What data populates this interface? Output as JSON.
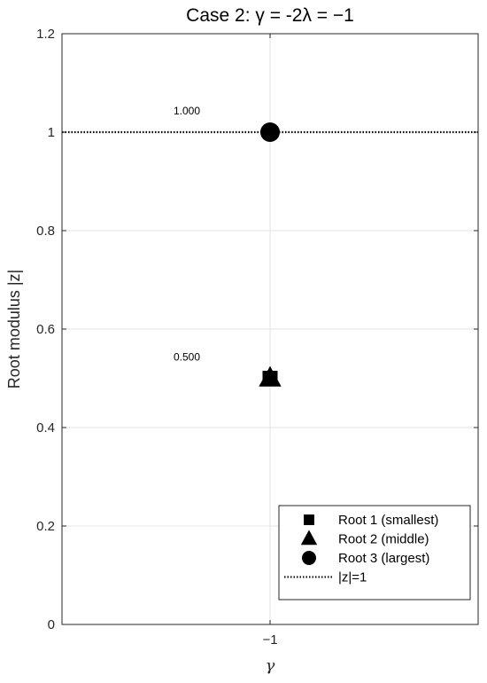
{
  "chart_data": {
    "type": "scatter",
    "title": "Case 2: γ = -2λ = −1",
    "xlabel": "γ",
    "ylabel": "Root modulus |z|",
    "xlim": [
      -1.5,
      -0.5
    ],
    "ylim": [
      0,
      1.2
    ],
    "x_ticks": [
      -1
    ],
    "x_tick_labels": [
      "−1"
    ],
    "y_ticks": [
      0,
      0.2,
      0.4,
      0.6,
      0.8,
      1,
      1.2
    ],
    "y_tick_labels": [
      "0",
      "0.2",
      "0.4",
      "0.6",
      "0.8",
      "1",
      "1.2"
    ],
    "grid": true,
    "legend_position": "bottom-right",
    "series": [
      {
        "name": "Root 1 (smallest)",
        "marker": "square",
        "x": [
          -1
        ],
        "y": [
          0.5
        ]
      },
      {
        "name": "Root 2 (middle)",
        "marker": "triangle",
        "x": [
          -1
        ],
        "y": [
          0.5
        ]
      },
      {
        "name": "Root 3 (largest)",
        "marker": "circle",
        "x": [
          -1
        ],
        "y": [
          1.0
        ]
      }
    ],
    "reference_line": {
      "name": "|z|=1",
      "y": 1,
      "style": "dotted"
    },
    "annotations": [
      {
        "text": "1.000",
        "x": -1.2,
        "y": 1.0
      },
      {
        "text": "0.500",
        "x": -1.2,
        "y": 0.5
      }
    ],
    "colors": {
      "marker": "#000000",
      "grid": "#e3e3e3",
      "axis": "#262626"
    }
  }
}
